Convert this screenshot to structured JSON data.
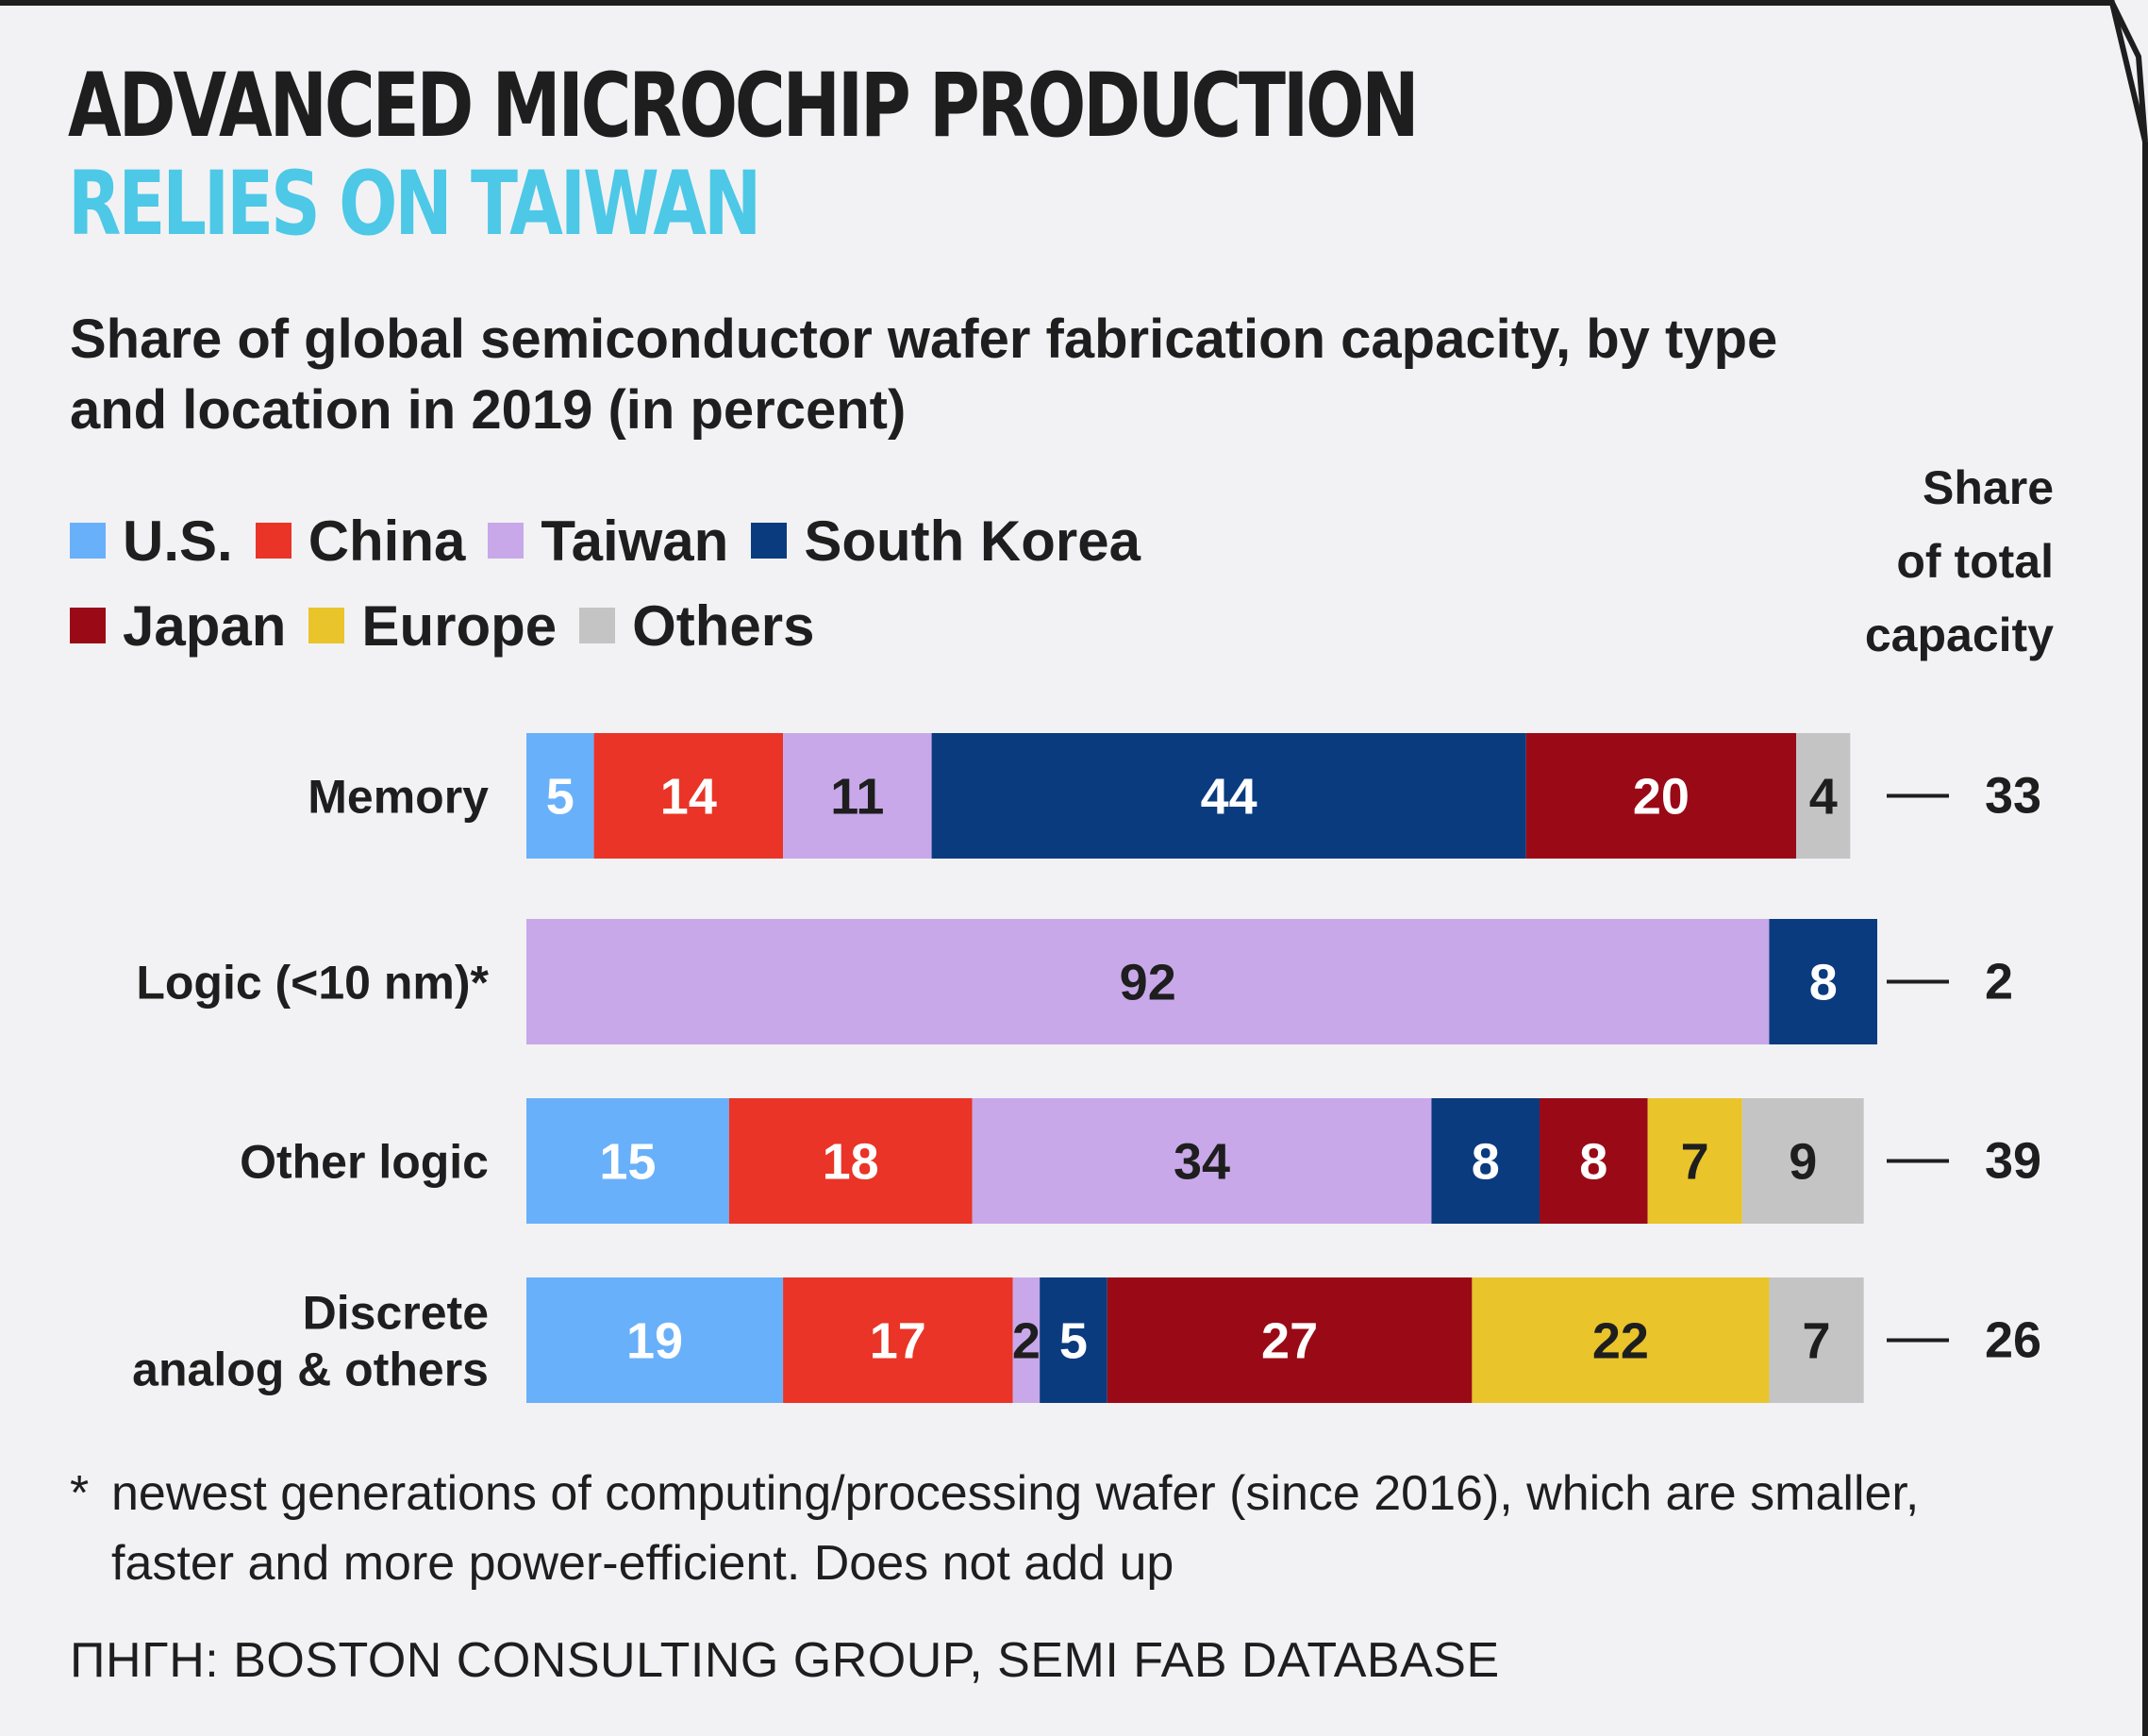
{
  "title": {
    "line1": "ADVANCED MICROCHIP PRODUCTION",
    "line2": "RELIES ON TAIWAN"
  },
  "subtitle": "Share of global semiconductor wafer fabrication capacity, by type and location in 2019 (in percent)",
  "legend": [
    {
      "name": "U.S.",
      "color": "#69b0fa"
    },
    {
      "name": "China",
      "color": "#e93427"
    },
    {
      "name": "Taiwan",
      "color": "#c8a8e9"
    },
    {
      "name": "South Korea",
      "color": "#0a3b7f"
    },
    {
      "name": "Japan",
      "color": "#9a0a16"
    },
    {
      "name": "Europe",
      "color": "#e9c42b"
    },
    {
      "name": "Others",
      "color": "#c4c4c4"
    }
  ],
  "share_header": [
    "Share",
    "of total",
    "capacity"
  ],
  "footnote": {
    "marker": "*",
    "text": "newest generations of computing/processing wafer (since 2016), which are smaller, faster and more power-efficient. Does not add up"
  },
  "source": "ΠΗΓΗ: BOSTON CONSULTING GROUP, SEMI FAB DATABASE",
  "chart_data": {
    "type": "bar",
    "orientation": "horizontal",
    "stacked": true,
    "categories": [
      [
        "Memory"
      ],
      [
        "Logic (<10 nm)*"
      ],
      [
        "Other logic"
      ],
      [
        "Discrete",
        "analog & others"
      ]
    ],
    "series": [
      {
        "name": "U.S.",
        "values": [
          5,
          0,
          15,
          19
        ]
      },
      {
        "name": "China",
        "values": [
          14,
          0,
          18,
          17
        ]
      },
      {
        "name": "Taiwan",
        "values": [
          11,
          92,
          34,
          2
        ]
      },
      {
        "name": "South Korea",
        "values": [
          44,
          8,
          8,
          5
        ]
      },
      {
        "name": "Japan",
        "values": [
          20,
          0,
          8,
          27
        ]
      },
      {
        "name": "Europe",
        "values": [
          0,
          0,
          7,
          22
        ]
      },
      {
        "name": "Others",
        "values": [
          4,
          0,
          9,
          7
        ]
      }
    ],
    "share_of_total_capacity": [
      33,
      2,
      39,
      26
    ],
    "dark_text_series": [
      "Taiwan",
      "Europe",
      "Others"
    ],
    "xlim": [
      0,
      100
    ]
  }
}
